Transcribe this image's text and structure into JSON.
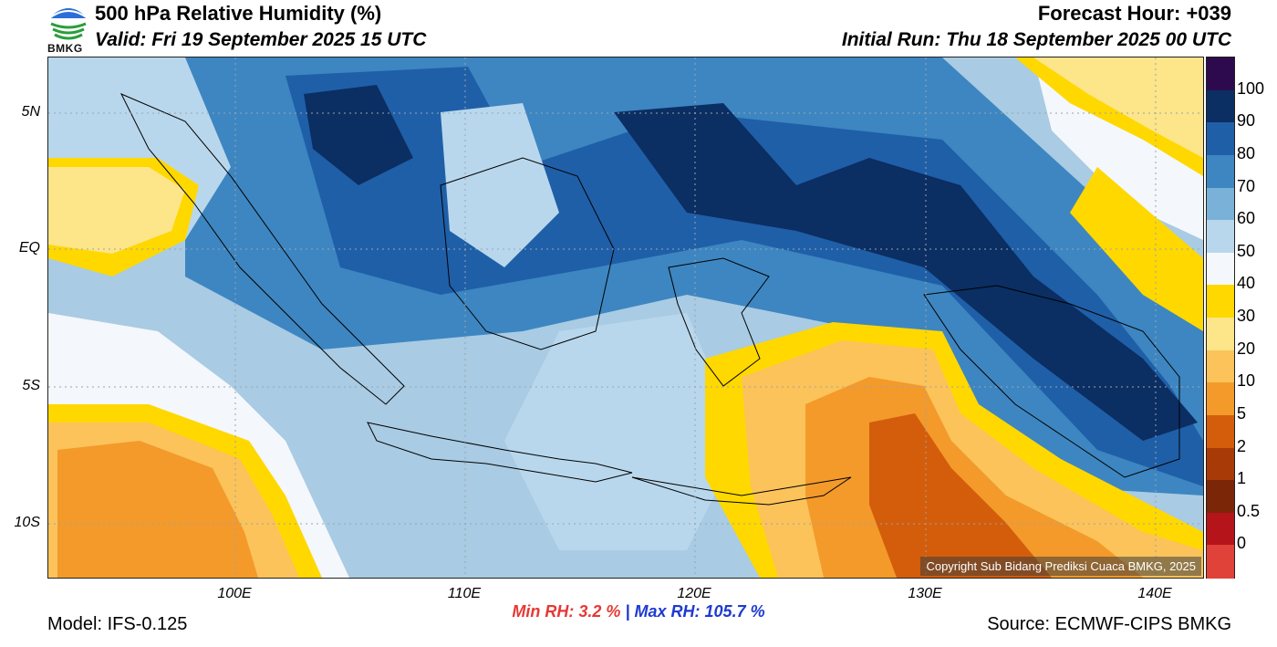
{
  "header": {
    "title": "500 hPa Relative Humidity (%)",
    "valid": "Valid: Fri 19 September 2025 15 UTC",
    "forecast_hour": "Forecast Hour: +039",
    "initial_run": "Initial Run: Thu 18 September 2025 00 UTC"
  },
  "logo": {
    "text": "BMKG"
  },
  "map": {
    "lat_labels": [
      "5N",
      "EQ",
      "5S",
      "10S"
    ],
    "lon_labels": [
      "100E",
      "110E",
      "120E",
      "130E",
      "140E"
    ],
    "copyright": "Copyright Sub Bidang Prediksi Cuaca BMKG, 2025"
  },
  "colorbar": {
    "labels": [
      "100",
      "90",
      "80",
      "70",
      "60",
      "50",
      "40",
      "30",
      "20",
      "10",
      "5",
      "2",
      "1",
      "0.5",
      "0"
    ],
    "colors": [
      "#2d0a4e",
      "#0b2e63",
      "#1f5fa8",
      "#3d86c1",
      "#79b1d8",
      "#b9d7ec",
      "#f4f7fb",
      "#ffd800",
      "#fde58a",
      "#fbc35a",
      "#f39a2b",
      "#d45d0b",
      "#a83a07",
      "#7b2606",
      "#b5141b",
      "#e0423a"
    ]
  },
  "stats": {
    "min_label": "Min RH:",
    "min_value": "3.2 %",
    "separator": "|",
    "max_label": "Max RH:",
    "max_value": "105.7 %"
  },
  "footer": {
    "model": "Model: IFS-0.125",
    "source": "Source: ECMWF-CIPS BMKG"
  }
}
